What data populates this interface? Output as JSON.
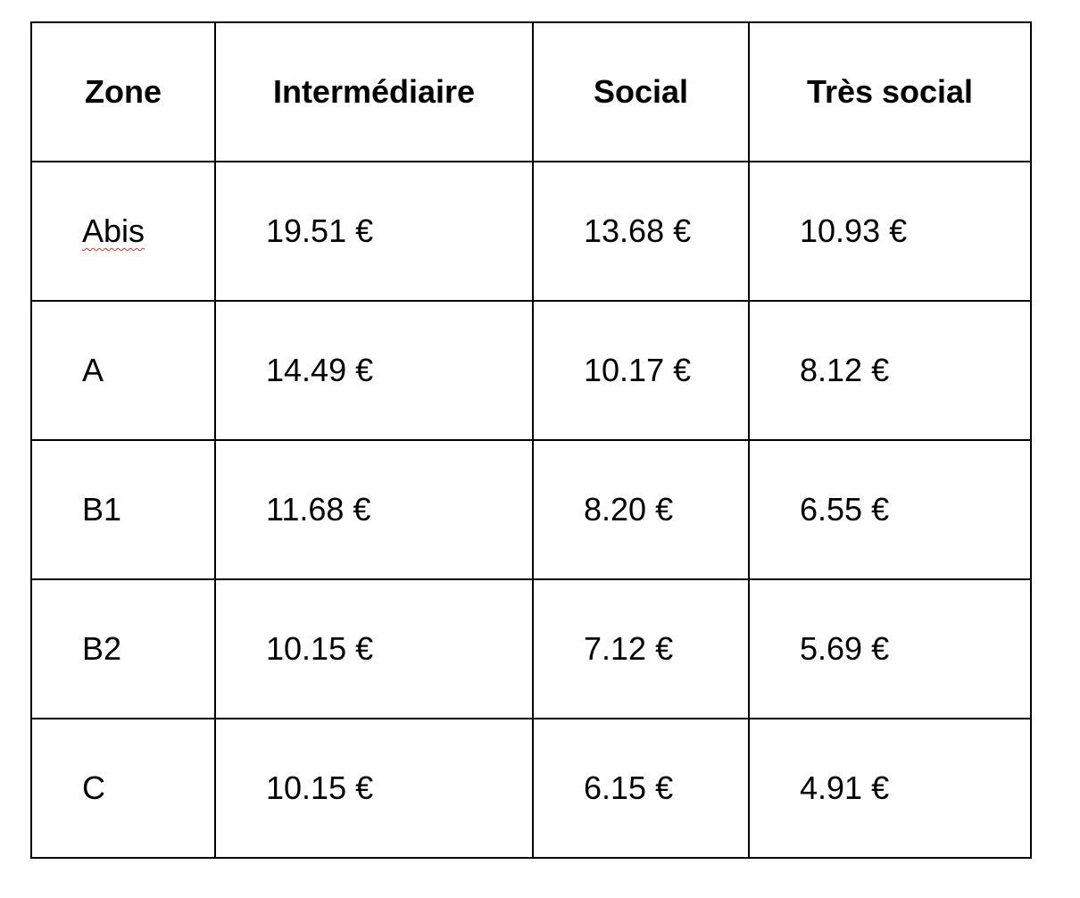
{
  "table": {
    "headers": [
      "Zone",
      "Intermédiaire",
      "Social",
      "Très social"
    ],
    "rows": [
      [
        "Abis",
        "19.51 €",
        "13.68 €",
        "10.93 €"
      ],
      [
        "A",
        "14.49 €",
        "10.17 €",
        "8.12 €"
      ],
      [
        "B1",
        "11.68 €",
        "8.20 €",
        "6.55 €"
      ],
      [
        "B2",
        "10.15 €",
        "7.12 €",
        "5.69 €"
      ],
      [
        "C",
        "10.15 €",
        "6.15 €",
        "4.91 €"
      ]
    ]
  },
  "spellcheck_color": "#e0342b"
}
